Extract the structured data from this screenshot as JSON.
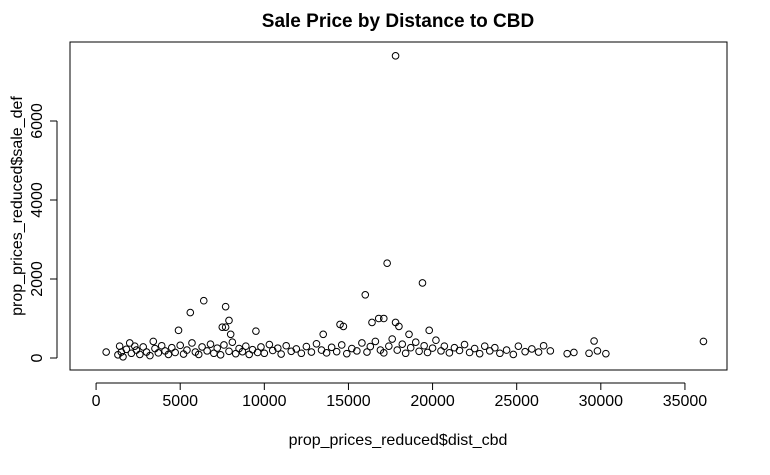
{
  "chart_data": {
    "type": "scatter",
    "title": "Sale Price by Distance to CBD",
    "x_label": "prop_prices_reduced$dist_cbd",
    "y_label": "prop_prices_reduced$sale_def",
    "xlim": [
      -1550,
      37500
    ],
    "ylim": [
      -304,
      8000
    ],
    "xticks": [
      0,
      5000,
      10000,
      15000,
      20000,
      25000,
      30000,
      35000
    ],
    "yticks": [
      0,
      2000,
      4000,
      6000
    ],
    "color": "#000000",
    "x": [
      1300,
      1400,
      1500,
      1600,
      1800,
      2000,
      2100,
      2300,
      2400,
      2600,
      2800,
      3000,
      3200,
      3400,
      3500,
      3700,
      3900,
      4100,
      4300,
      4500,
      4700,
      5000,
      5200,
      5400,
      5700,
      5900,
      6100,
      6300,
      6600,
      6800,
      7000,
      7200,
      7400,
      7600,
      7900,
      8100,
      8300,
      8500,
      8700,
      8900,
      9100,
      9300,
      9600,
      9800,
      10000,
      10300,
      10500,
      10800,
      11000,
      11300,
      11600,
      11900,
      12200,
      12500,
      12800,
      13100,
      13400,
      13700,
      14000,
      14300,
      14600,
      14900,
      15200,
      15500,
      15800,
      16100,
      16300,
      16600,
      16900,
      17100,
      17400,
      17600,
      17900,
      18200,
      18400,
      18700,
      19000,
      19200,
      19500,
      19700,
      20000,
      20200,
      20500,
      20700,
      21000,
      21300,
      21600,
      21900,
      22200,
      22500,
      22800,
      23100,
      23400,
      23700,
      24000,
      24400,
      24800,
      25100,
      25500,
      25900,
      26300,
      26600,
      27000,
      28000,
      28400,
      29300,
      29800,
      30300,
      600,
      4900,
      5600,
      6400,
      7700,
      7700,
      7900,
      7500,
      8000,
      9500,
      13500,
      14500,
      14700,
      16000,
      16400,
      16800,
      17100,
      17300,
      17800,
      17800,
      18000,
      18600,
      19400,
      19800,
      29600,
      36100
    ],
    "y": [
      80,
      300,
      150,
      30,
      220,
      380,
      120,
      300,
      200,
      90,
      280,
      150,
      60,
      420,
      240,
      130,
      310,
      180,
      90,
      260,
      140,
      320,
      100,
      200,
      380,
      150,
      90,
      280,
      180,
      350,
      120,
      250,
      80,
      330,
      170,
      400,
      110,
      240,
      160,
      300,
      90,
      210,
      140,
      280,
      120,
      340,
      190,
      250,
      100,
      310,
      170,
      230,
      120,
      290,
      150,
      360,
      200,
      130,
      270,
      160,
      330,
      110,
      240,
      180,
      380,
      150,
      290,
      420,
      200,
      130,
      300,
      480,
      200,
      350,
      120,
      260,
      400,
      170,
      310,
      140,
      250,
      450,
      180,
      300,
      130,
      260,
      190,
      340,
      140,
      240,
      110,
      300,
      180,
      260,
      120,
      200,
      90,
      300,
      160,
      230,
      150,
      310,
      180,
      110,
      140,
      120,
      180,
      110,
      150,
      700,
      1150,
      1450,
      1300,
      780,
      950,
      780,
      600,
      680,
      600,
      850,
      800,
      1600,
      900,
      1000,
      1000,
      2400,
      7650,
      900,
      800,
      600,
      1900,
      700,
      430,
      420
    ]
  }
}
